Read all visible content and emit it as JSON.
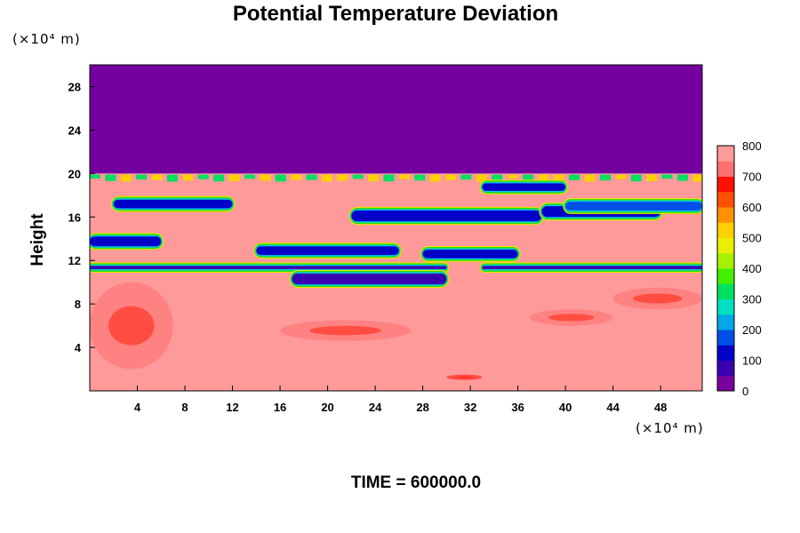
{
  "chart_data": {
    "type": "heatmap",
    "title": "Potential Temperature Deviation",
    "ylabel": "Height",
    "xlabel": "",
    "x_unit": "(×10⁴ m)",
    "y_unit": "(×10⁴ m)",
    "x_ticks": [
      4,
      8,
      12,
      16,
      20,
      24,
      28,
      32,
      36,
      40,
      44,
      48
    ],
    "y_ticks": [
      4,
      8,
      12,
      16,
      20,
      24,
      28
    ],
    "xlim": [
      0,
      51.5
    ],
    "ylim": [
      0,
      30
    ],
    "colorbar": {
      "ticks": [
        0,
        100,
        200,
        300,
        400,
        500,
        600,
        700,
        800
      ],
      "range": [
        0,
        800
      ],
      "colors": [
        "#7a00a0",
        "#3a00b0",
        "#0000c8",
        "#0050e8",
        "#00a8e8",
        "#00e0c0",
        "#00e060",
        "#40f000",
        "#a8f000",
        "#e8f000",
        "#ffd000",
        "#ff9000",
        "#ff5000",
        "#ff1000",
        "#ff7070",
        "#ff9a9a"
      ]
    },
    "fields": {
      "upper_region": {
        "y_range": [
          20,
          30
        ],
        "value": 0,
        "color": "#7400a0"
      },
      "lower_region": {
        "y_range": [
          0,
          20
        ],
        "value": 800,
        "color": "#ff9a9a"
      },
      "low_bands": [
        {
          "x": [
            0,
            30
          ],
          "y": [
            11.2,
            11.5
          ],
          "value": 50
        },
        {
          "x": [
            33,
            51.5
          ],
          "y": [
            11.2,
            11.5
          ],
          "value": 50
        },
        {
          "x": [
            17,
            30
          ],
          "y": [
            9.8,
            10.8
          ],
          "value": 50
        },
        {
          "x": [
            0,
            6
          ],
          "y": [
            13.3,
            14.2
          ],
          "value": 100
        },
        {
          "x": [
            14,
            26
          ],
          "y": [
            12.5,
            13.3
          ],
          "value": 100
        },
        {
          "x": [
            28,
            36
          ],
          "y": [
            12.2,
            13
          ],
          "value": 100
        },
        {
          "x": [
            2,
            12
          ],
          "y": [
            16.8,
            17.6
          ],
          "value": 100
        },
        {
          "x": [
            22,
            38
          ],
          "y": [
            15.6,
            16.6
          ],
          "value": 100
        },
        {
          "x": [
            38,
            48
          ],
          "y": [
            16,
            17
          ],
          "value": 100
        },
        {
          "x": [
            33,
            40
          ],
          "y": [
            18.4,
            19.1
          ],
          "value": 100
        },
        {
          "x": [
            40,
            51.5
          ],
          "y": [
            16.6,
            17.4
          ],
          "value": 150
        }
      ],
      "warm_features": [
        {
          "x": [
            0,
            7
          ],
          "y": [
            2,
            10
          ],
          "value": 700
        },
        {
          "x": [
            16,
            27
          ],
          "y": [
            4.6,
            6.5
          ],
          "value": 700
        },
        {
          "x": [
            37,
            44
          ],
          "y": [
            6,
            7.5
          ],
          "value": 700
        },
        {
          "x": [
            44,
            51.5
          ],
          "y": [
            7.5,
            9.5
          ],
          "value": 700
        },
        {
          "x": [
            30,
            33
          ],
          "y": [
            1,
            1.5
          ],
          "value": 650
        }
      ]
    }
  },
  "footer": {
    "text": "TIME = 600000.0"
  }
}
